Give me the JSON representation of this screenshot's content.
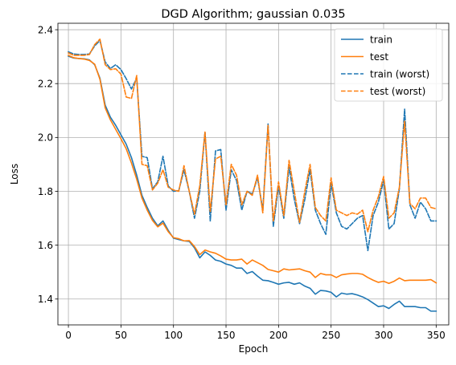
{
  "chart_data": {
    "type": "line",
    "title": "DGD Algorithm; gaussian 0.035",
    "xlabel": "Epoch",
    "ylabel": "Loss",
    "xlim": [
      -10,
      362
    ],
    "ylim": [
      1.304,
      2.424
    ],
    "xticks": [
      0,
      50,
      100,
      150,
      200,
      250,
      300,
      350
    ],
    "yticks": [
      1.4,
      1.6,
      1.8,
      2.0,
      2.2,
      2.4
    ],
    "ytick_labels": [
      "1.4",
      "1.6",
      "1.8",
      "2.0",
      "2.2",
      "2.4"
    ],
    "grid": true,
    "legend_position": "top-right",
    "x": [
      0,
      5,
      10,
      15,
      20,
      25,
      30,
      35,
      40,
      45,
      50,
      55,
      60,
      65,
      70,
      75,
      80,
      85,
      90,
      95,
      100,
      105,
      110,
      115,
      120,
      125,
      130,
      135,
      140,
      145,
      150,
      155,
      160,
      165,
      170,
      175,
      180,
      185,
      190,
      195,
      200,
      205,
      210,
      215,
      220,
      225,
      230,
      235,
      240,
      245,
      250,
      255,
      260,
      265,
      270,
      275,
      280,
      285,
      290,
      295,
      300,
      305,
      310,
      315,
      320,
      325,
      330,
      335,
      340,
      345,
      350
    ],
    "series": [
      {
        "name": "train",
        "color": "#1f77b4",
        "dash": "solid",
        "values": [
          2.302,
          2.295,
          2.293,
          2.292,
          2.288,
          2.27,
          2.22,
          2.12,
          2.075,
          2.045,
          2.01,
          1.975,
          1.925,
          1.86,
          1.785,
          1.74,
          1.7,
          1.672,
          1.69,
          1.655,
          1.626,
          1.621,
          1.616,
          1.614,
          1.59,
          1.553,
          1.575,
          1.562,
          1.545,
          1.54,
          1.53,
          1.525,
          1.515,
          1.515,
          1.495,
          1.502,
          1.485,
          1.47,
          1.468,
          1.462,
          1.455,
          1.46,
          1.462,
          1.455,
          1.46,
          1.448,
          1.44,
          1.418,
          1.432,
          1.43,
          1.425,
          1.408,
          1.422,
          1.418,
          1.42,
          1.415,
          1.408,
          1.398,
          1.385,
          1.372,
          1.375,
          1.365,
          1.38,
          1.392,
          1.372,
          1.372,
          1.372,
          1.368,
          1.368,
          1.355,
          1.355
        ]
      },
      {
        "name": "test",
        "color": "#ff7f0e",
        "dash": "solid",
        "values": [
          2.305,
          2.296,
          2.293,
          2.291,
          2.286,
          2.272,
          2.216,
          2.11,
          2.065,
          2.03,
          1.995,
          1.958,
          1.905,
          1.845,
          1.775,
          1.73,
          1.692,
          1.668,
          1.682,
          1.65,
          1.628,
          1.624,
          1.616,
          1.617,
          1.595,
          1.565,
          1.582,
          1.575,
          1.57,
          1.56,
          1.548,
          1.545,
          1.545,
          1.548,
          1.53,
          1.545,
          1.535,
          1.525,
          1.51,
          1.505,
          1.5,
          1.512,
          1.508,
          1.51,
          1.512,
          1.505,
          1.5,
          1.48,
          1.495,
          1.49,
          1.49,
          1.48,
          1.49,
          1.493,
          1.495,
          1.495,
          1.492,
          1.48,
          1.47,
          1.462,
          1.466,
          1.458,
          1.466,
          1.478,
          1.468,
          1.47,
          1.47,
          1.47,
          1.47,
          1.472,
          1.46
        ]
      },
      {
        "name": "train (worst)",
        "color": "#1f77b4",
        "dash": "dashed",
        "values": [
          2.318,
          2.31,
          2.308,
          2.308,
          2.31,
          2.34,
          2.36,
          2.28,
          2.256,
          2.27,
          2.252,
          2.218,
          2.18,
          2.22,
          1.93,
          1.925,
          1.81,
          1.835,
          1.93,
          1.82,
          1.8,
          1.802,
          1.88,
          1.8,
          1.7,
          1.8,
          2.02,
          1.69,
          1.95,
          1.955,
          1.73,
          1.88,
          1.84,
          1.73,
          1.8,
          1.79,
          1.85,
          1.73,
          2.05,
          1.67,
          1.82,
          1.7,
          1.89,
          1.77,
          1.68,
          1.77,
          1.88,
          1.73,
          1.68,
          1.64,
          1.83,
          1.72,
          1.67,
          1.66,
          1.68,
          1.7,
          1.71,
          1.58,
          1.71,
          1.76,
          1.84,
          1.66,
          1.68,
          1.81,
          2.105,
          1.75,
          1.7,
          1.76,
          1.735,
          1.69,
          1.69
        ]
      },
      {
        "name": "test (worst)",
        "color": "#ff7f0e",
        "dash": "dashed",
        "values": [
          2.314,
          2.305,
          2.305,
          2.305,
          2.308,
          2.345,
          2.365,
          2.27,
          2.252,
          2.255,
          2.235,
          2.15,
          2.145,
          2.23,
          1.9,
          1.895,
          1.805,
          1.83,
          1.88,
          1.815,
          1.805,
          1.8,
          1.895,
          1.8,
          1.715,
          1.82,
          2.02,
          1.725,
          1.92,
          1.93,
          1.75,
          1.9,
          1.86,
          1.75,
          1.8,
          1.785,
          1.86,
          1.72,
          2.045,
          1.69,
          1.835,
          1.71,
          1.915,
          1.8,
          1.685,
          1.8,
          1.9,
          1.74,
          1.71,
          1.69,
          1.85,
          1.73,
          1.72,
          1.71,
          1.72,
          1.715,
          1.73,
          1.65,
          1.73,
          1.78,
          1.855,
          1.7,
          1.72,
          1.815,
          2.06,
          1.755,
          1.735,
          1.775,
          1.775,
          1.74,
          1.735
        ]
      }
    ]
  }
}
